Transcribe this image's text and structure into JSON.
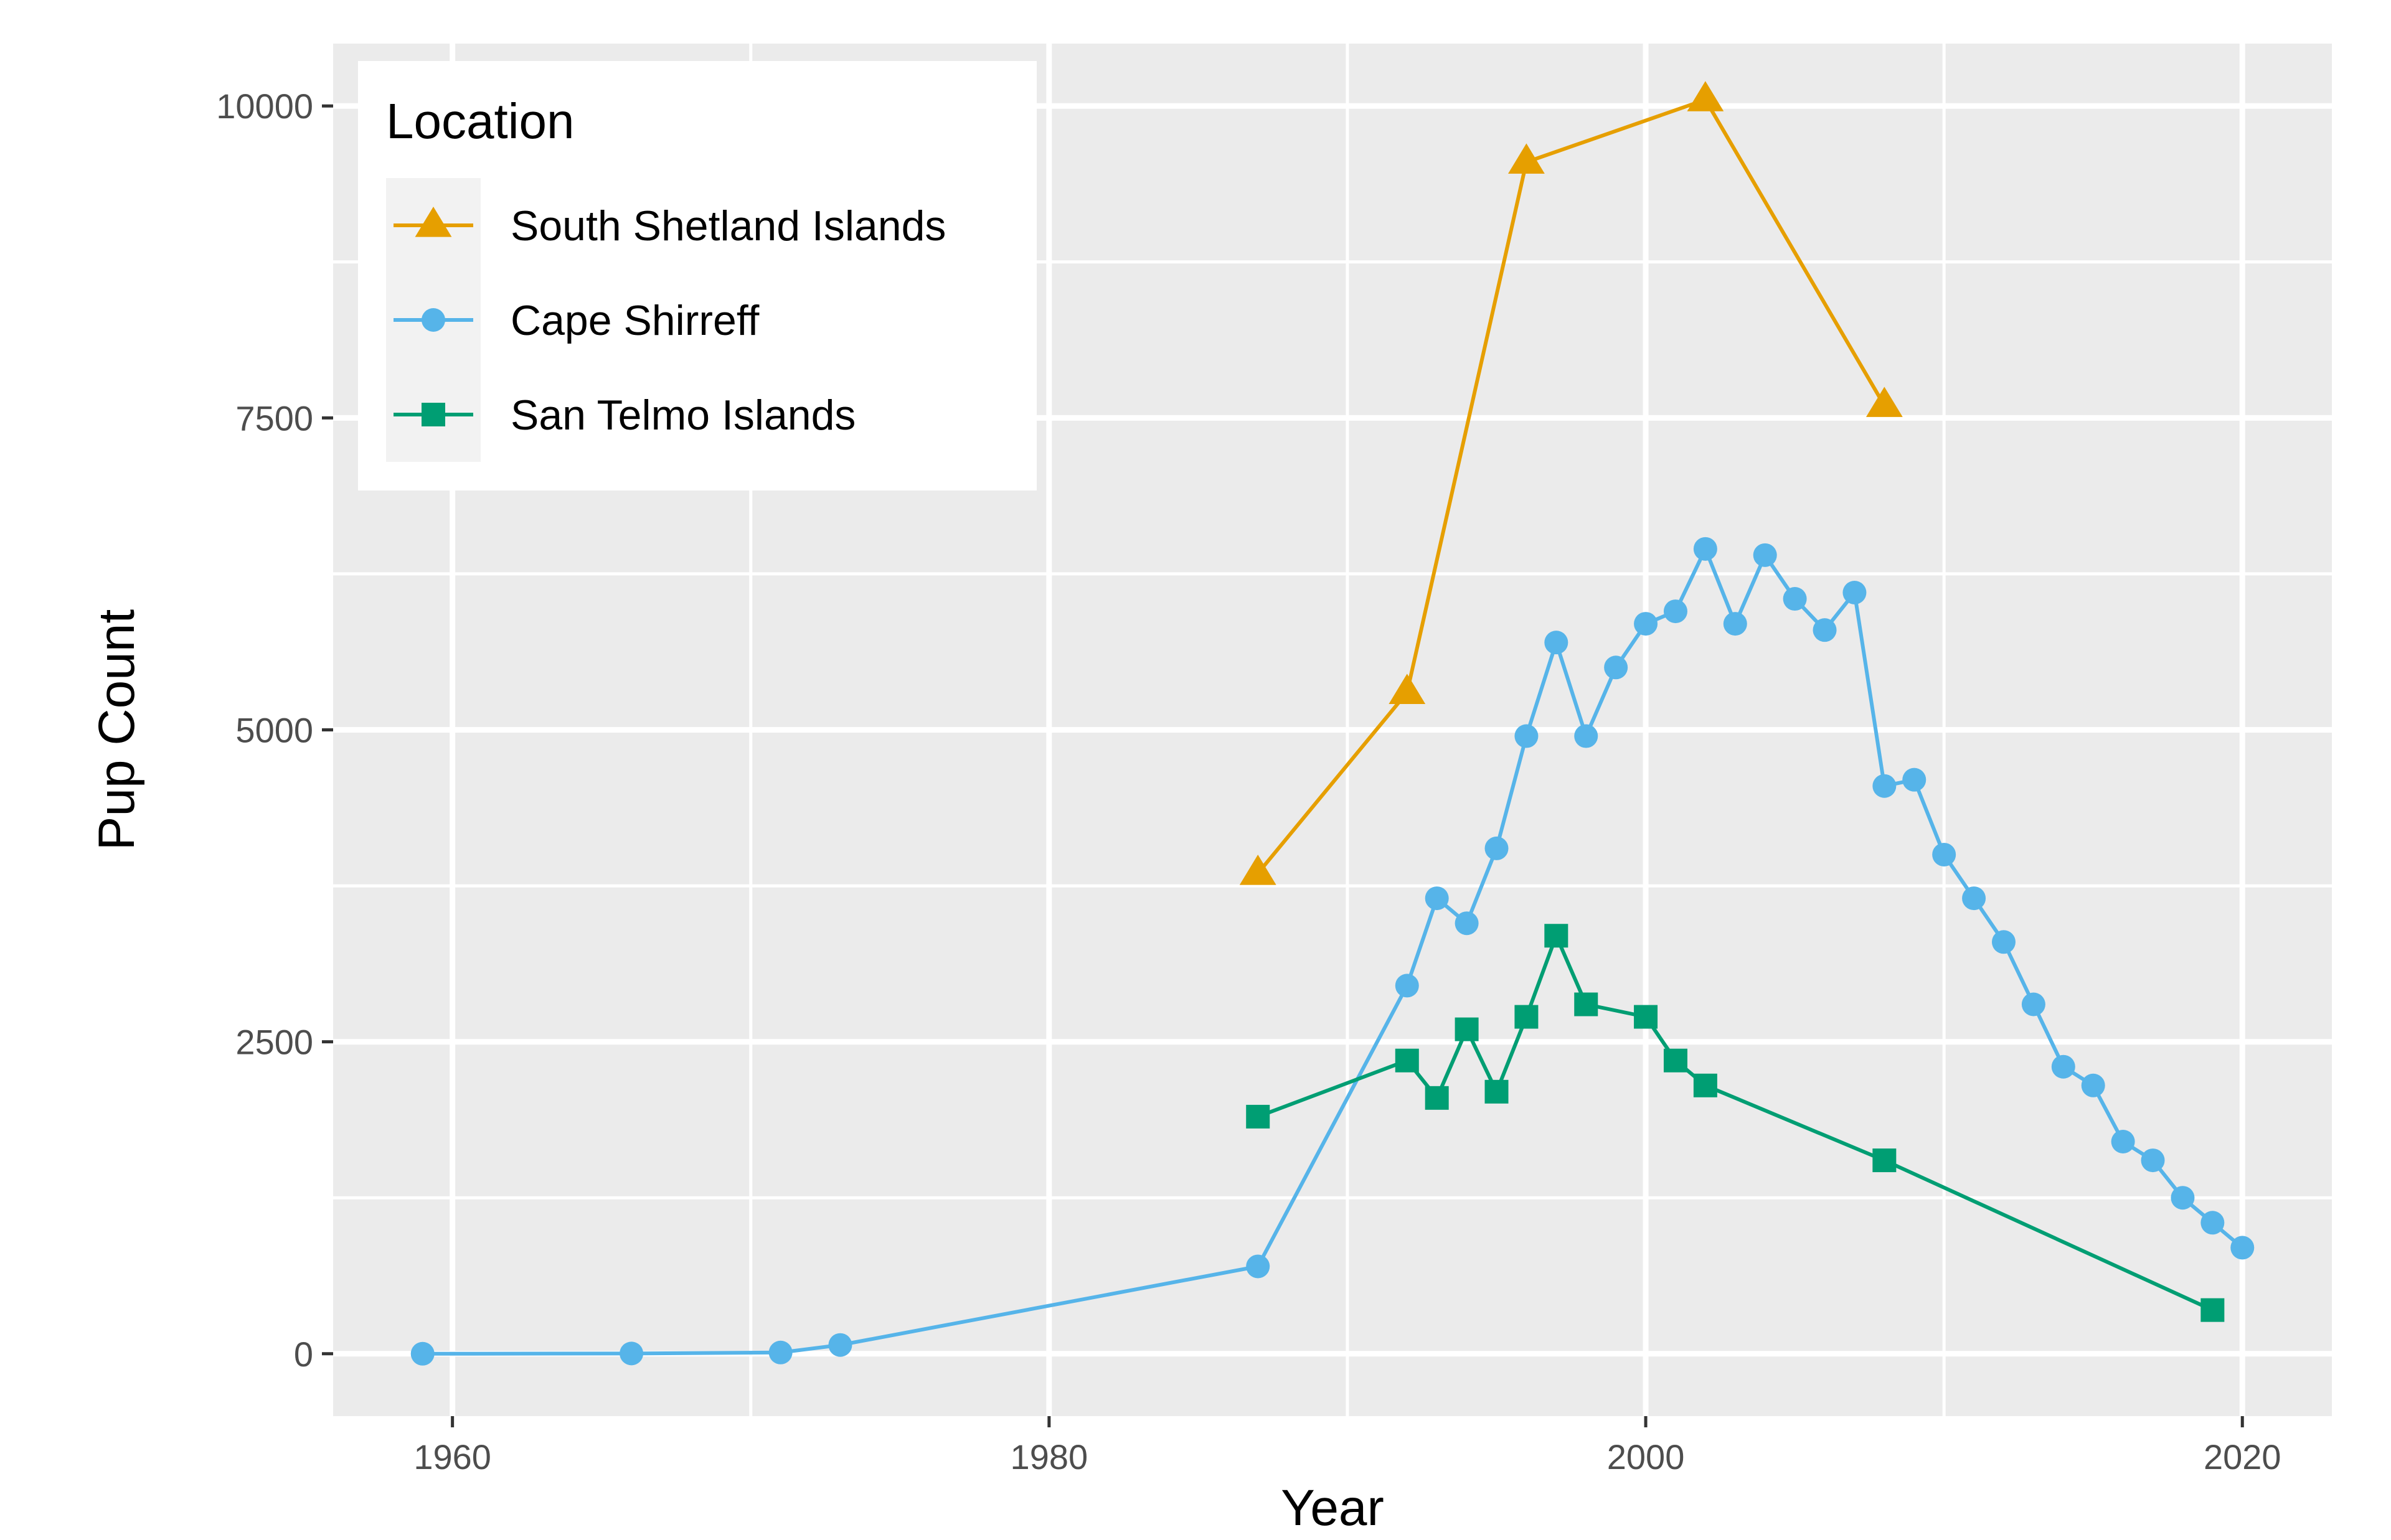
{
  "chart_data": {
    "type": "line",
    "xlabel": "Year",
    "ylabel": "Pup Count",
    "xlim": [
      1956,
      2023
    ],
    "ylim": [
      -500,
      10500
    ],
    "x_ticks": [
      1960,
      1980,
      2000,
      2020
    ],
    "x_minor_ticks": [
      1970,
      1990,
      2010
    ],
    "y_ticks": [
      0,
      2500,
      5000,
      7500,
      10000
    ],
    "y_minor_ticks": [
      1250,
      3750,
      6250,
      8750
    ],
    "grid": true,
    "panel_background": "#ebebeb",
    "legend": {
      "title": "Location",
      "placement": "top-left"
    },
    "series": [
      {
        "name": "South Shetland Islands",
        "color": "#e69f00",
        "marker": "triangle",
        "points": [
          {
            "x": 1987,
            "y": 3850
          },
          {
            "x": 1992,
            "y": 5300
          },
          {
            "x": 1996,
            "y": 9550
          },
          {
            "x": 2002,
            "y": 10050
          },
          {
            "x": 2008,
            "y": 7600
          }
        ]
      },
      {
        "name": "Cape Shirreff",
        "color": "#56b4e9",
        "marker": "circle",
        "points": [
          {
            "x": 1959,
            "y": 0
          },
          {
            "x": 1966,
            "y": 2
          },
          {
            "x": 1971,
            "y": 10
          },
          {
            "x": 1973,
            "y": 70
          },
          {
            "x": 1987,
            "y": 700
          },
          {
            "x": 1992,
            "y": 2950
          },
          {
            "x": 1993,
            "y": 3650
          },
          {
            "x": 1994,
            "y": 3450
          },
          {
            "x": 1995,
            "y": 4050
          },
          {
            "x": 1996,
            "y": 4950
          },
          {
            "x": 1997,
            "y": 5700
          },
          {
            "x": 1998,
            "y": 4950
          },
          {
            "x": 1999,
            "y": 5500
          },
          {
            "x": 2000,
            "y": 5850
          },
          {
            "x": 2001,
            "y": 5950
          },
          {
            "x": 2002,
            "y": 6450
          },
          {
            "x": 2003,
            "y": 5850
          },
          {
            "x": 2004,
            "y": 6400
          },
          {
            "x": 2005,
            "y": 6050
          },
          {
            "x": 2006,
            "y": 5800
          },
          {
            "x": 2007,
            "y": 6100
          },
          {
            "x": 2008,
            "y": 4550
          },
          {
            "x": 2009,
            "y": 4600
          },
          {
            "x": 2010,
            "y": 4000
          },
          {
            "x": 2011,
            "y": 3650
          },
          {
            "x": 2012,
            "y": 3300
          },
          {
            "x": 2013,
            "y": 2800
          },
          {
            "x": 2014,
            "y": 2300
          },
          {
            "x": 2015,
            "y": 2150
          },
          {
            "x": 2016,
            "y": 1700
          },
          {
            "x": 2017,
            "y": 1550
          },
          {
            "x": 2018,
            "y": 1250
          },
          {
            "x": 2019,
            "y": 1050
          },
          {
            "x": 2020,
            "y": 850
          }
        ]
      },
      {
        "name": "San Telmo Islands",
        "color": "#009e73",
        "marker": "square",
        "points": [
          {
            "x": 1987,
            "y": 1900
          },
          {
            "x": 1992,
            "y": 2350
          },
          {
            "x": 1993,
            "y": 2050
          },
          {
            "x": 1994,
            "y": 2600
          },
          {
            "x": 1995,
            "y": 2100
          },
          {
            "x": 1996,
            "y": 2700
          },
          {
            "x": 1997,
            "y": 3350
          },
          {
            "x": 1998,
            "y": 2800
          },
          {
            "x": 2000,
            "y": 2700
          },
          {
            "x": 2001,
            "y": 2350
          },
          {
            "x": 2002,
            "y": 2150
          },
          {
            "x": 2008,
            "y": 1550
          },
          {
            "x": 2019,
            "y": 350
          }
        ]
      }
    ]
  }
}
